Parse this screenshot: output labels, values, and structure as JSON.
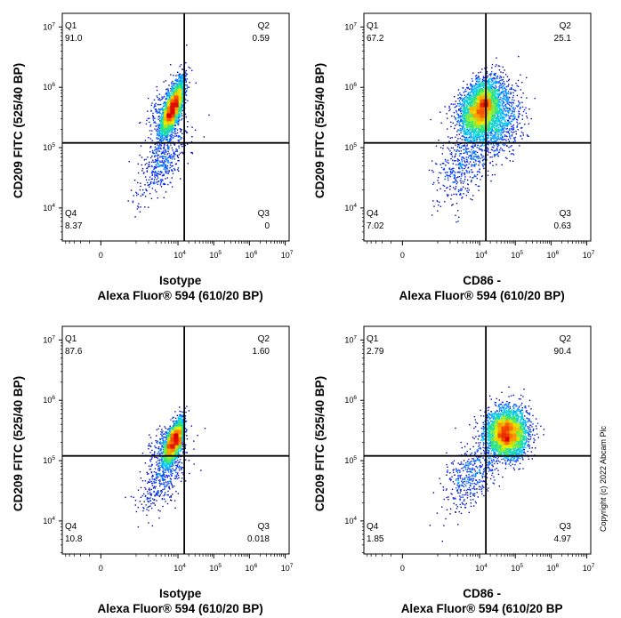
{
  "copyright": "Copyright (c) 2022 Abcam Plc",
  "chart_data": [
    {
      "type": "scatter",
      "xlabel_line1": "Isotype",
      "xlabel_line2": "Alexa Fluor® 594  (610/20 BP)",
      "ylabel": "CD209 FITC (525/40 BP)",
      "x_scale": "biexponential",
      "y_scale": "log",
      "xlim": [
        -1000,
        10000000
      ],
      "ylim": [
        3000,
        10000000
      ],
      "x_ticks": [
        "0",
        "10^4",
        "10^5",
        "10^6",
        "10^7"
      ],
      "y_ticks": [
        "10^4",
        "10^5",
        "10^6",
        "10^7"
      ],
      "gate": {
        "x": 15000,
        "y": 120000
      },
      "quadrants": [
        {
          "name": "Q1",
          "value": "91.0"
        },
        {
          "name": "Q2",
          "value": "0.59"
        },
        {
          "name": "Q3",
          "value": "0"
        },
        {
          "name": "Q4",
          "value": "8.37"
        }
      ],
      "populations": [
        {
          "x_center": 7500,
          "y_center": 450000,
          "x_spread_decades": 0.1,
          "y_spread_decades": 0.22,
          "tilt": 0.45,
          "count": 3200
        },
        {
          "x_center": 4500,
          "y_center": 60000,
          "x_spread_decades": 0.25,
          "y_spread_decades": 0.35,
          "tilt": 0.6,
          "count": 500
        }
      ]
    },
    {
      "type": "scatter",
      "xlabel_line1": "CD86 -",
      "xlabel_line2": "Alexa Fluor® 594  (610/20 BP)",
      "ylabel": "CD209 FITC (525/40 BP)",
      "x_scale": "biexponential",
      "y_scale": "log",
      "xlim": [
        -1000,
        10000000
      ],
      "ylim": [
        3000,
        10000000
      ],
      "x_ticks": [
        "0",
        "10^4",
        "10^5",
        "10^6",
        "10^7"
      ],
      "y_ticks": [
        "10^4",
        "10^5",
        "10^6",
        "10^7"
      ],
      "gate": {
        "x": 15000,
        "y": 120000
      },
      "quadrants": [
        {
          "name": "Q1",
          "value": "67.2"
        },
        {
          "name": "Q2",
          "value": "25.1"
        },
        {
          "name": "Q3",
          "value": "0.63"
        },
        {
          "name": "Q4",
          "value": "7.02"
        }
      ],
      "populations": [
        {
          "x_center": 11000,
          "y_center": 450000,
          "x_spread_decades": 0.22,
          "y_spread_decades": 0.22,
          "tilt": 0.35,
          "count": 3200
        },
        {
          "x_center": 30000,
          "y_center": 300000,
          "x_spread_decades": 0.35,
          "y_spread_decades": 0.3,
          "tilt": 0.2,
          "count": 1200
        },
        {
          "x_center": 5000,
          "y_center": 60000,
          "x_spread_decades": 0.3,
          "y_spread_decades": 0.35,
          "tilt": 0.5,
          "count": 500
        }
      ]
    },
    {
      "type": "scatter",
      "xlabel_line1": "Isotype",
      "xlabel_line2": "Alexa Fluor® 594  (610/20 BP)",
      "ylabel": "CD209 FITC (525/40 BP)",
      "x_scale": "biexponential",
      "y_scale": "log",
      "xlim": [
        -1000,
        10000000
      ],
      "ylim": [
        3000,
        10000000
      ],
      "x_ticks": [
        "0",
        "10^4",
        "10^5",
        "10^6",
        "10^7"
      ],
      "y_ticks": [
        "10^4",
        "10^5",
        "10^6",
        "10^7"
      ],
      "gate": {
        "x": 15000,
        "y": 120000
      },
      "quadrants": [
        {
          "name": "Q1",
          "value": "87.6"
        },
        {
          "name": "Q2",
          "value": "1.60"
        },
        {
          "name": "Q3",
          "value": "0.018"
        },
        {
          "name": "Q4",
          "value": "10.8"
        }
      ],
      "populations": [
        {
          "x_center": 8000,
          "y_center": 200000,
          "x_spread_decades": 0.1,
          "y_spread_decades": 0.18,
          "tilt": 0.45,
          "count": 2800
        },
        {
          "x_center": 4500,
          "y_center": 50000,
          "x_spread_decades": 0.22,
          "y_spread_decades": 0.3,
          "tilt": 0.6,
          "count": 400
        }
      ]
    },
    {
      "type": "scatter",
      "xlabel_line1": "CD86 -",
      "xlabel_line2": "Alexa Fluor® 594  (610/20 BP",
      "ylabel": "CD209 FITC (525/40 BP)",
      "x_scale": "biexponential",
      "y_scale": "log",
      "xlim": [
        -1000,
        10000000
      ],
      "ylim": [
        3000,
        10000000
      ],
      "x_ticks": [
        "0",
        "10^4",
        "10^5",
        "10^6",
        "10^7"
      ],
      "y_ticks": [
        "10^4",
        "10^5",
        "10^6",
        "10^7"
      ],
      "gate": {
        "x": 15000,
        "y": 120000
      },
      "quadrants": [
        {
          "name": "Q1",
          "value": "2.79"
        },
        {
          "name": "Q2",
          "value": "90.4"
        },
        {
          "name": "Q3",
          "value": "4.97"
        },
        {
          "name": "Q4",
          "value": "1.85"
        }
      ],
      "populations": [
        {
          "x_center": 60000,
          "y_center": 280000,
          "x_spread_decades": 0.28,
          "y_spread_decades": 0.2,
          "tilt": 0.05,
          "count": 3800
        },
        {
          "x_center": 7000,
          "y_center": 60000,
          "x_spread_decades": 0.3,
          "y_spread_decades": 0.3,
          "tilt": 0.5,
          "count": 450
        }
      ]
    }
  ]
}
